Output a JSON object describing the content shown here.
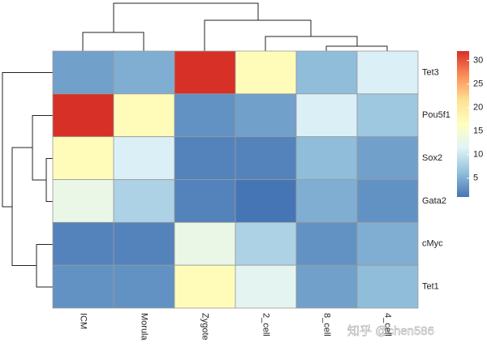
{
  "chart_data": {
    "type": "heatmap",
    "categories": [
      "ICM",
      "Morula",
      "Zygote",
      "2_cell",
      "8_cell",
      "4_cell"
    ],
    "series": [
      {
        "name": "Tet3",
        "values": [
          4,
          5,
          32,
          17,
          6,
          11
        ]
      },
      {
        "name": "Pou5f1",
        "values": [
          32,
          17,
          3,
          4,
          11,
          7
        ]
      },
      {
        "name": "Sox2",
        "values": [
          17,
          11,
          2,
          2,
          6,
          4
        ]
      },
      {
        "name": "Gata2",
        "values": [
          13,
          8,
          2,
          1,
          5,
          3
        ]
      },
      {
        "name": "cMyc",
        "values": [
          2,
          2,
          13,
          8,
          3,
          5
        ]
      },
      {
        "name": "Tet1",
        "values": [
          3,
          3,
          17,
          12,
          4,
          6
        ]
      }
    ],
    "colors": [
      "#4575B4",
      "#91BFDB",
      "#E0F3F8",
      "#FFFFBF",
      "#FEE090",
      "#FC8D59",
      "#D73027"
    ],
    "colorlim": [
      1,
      32
    ],
    "colorticks": [
      5,
      10,
      15,
      20,
      25,
      30
    ],
    "watermark": "知乎 @chen586"
  }
}
